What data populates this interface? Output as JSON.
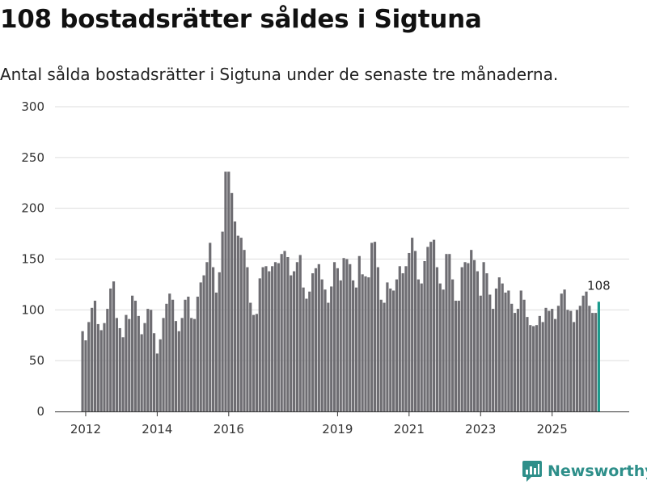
{
  "header": {
    "title": "108 bostadsrätter såldes i Sigtuna",
    "subtitle": "Antal sålda bostadsrätter i Sigtuna under de senaste tre månaderna."
  },
  "brand": {
    "name": "Newsworthy",
    "icon": "newsworthy-logo-icon",
    "color": "#2e8f8a"
  },
  "colors": {
    "bar": "#6e6d72",
    "highlight": "#1a9a8c",
    "grid": "#dddddd",
    "axis": "#333333"
  },
  "chart_data": {
    "type": "bar",
    "title": "108 bostadsrätter såldes i Sigtuna",
    "subtitle": "Antal sålda bostadsrätter i Sigtuna under de senaste tre månaderna.",
    "xlabel": "",
    "ylabel": "",
    "ylim": [
      0,
      300
    ],
    "yticks": [
      0,
      50,
      100,
      150,
      200,
      250,
      300
    ],
    "x_start": "2012-01",
    "frequency": "monthly",
    "x_tick_labels": [
      {
        "label": "2012",
        "index": 1
      },
      {
        "label": "2014",
        "index": 24
      },
      {
        "label": "2016",
        "index": 47
      },
      {
        "label": "2019",
        "index": 82
      },
      {
        "label": "2021",
        "index": 105
      },
      {
        "label": "2023",
        "index": 128
      },
      {
        "label": "2025",
        "index": 151
      }
    ],
    "grid": true,
    "values": [
      79,
      70,
      88,
      102,
      109,
      86,
      80,
      87,
      101,
      121,
      128,
      92,
      82,
      73,
      95,
      91,
      114,
      109,
      94,
      76,
      87,
      101,
      100,
      77,
      57,
      71,
      92,
      106,
      116,
      110,
      89,
      79,
      92,
      110,
      113,
      92,
      91,
      113,
      127,
      134,
      147,
      166,
      142,
      117,
      137,
      177,
      236,
      236,
      215,
      187,
      173,
      171,
      159,
      142,
      107,
      95,
      96,
      131,
      142,
      143,
      138,
      143,
      147,
      146,
      155,
      158,
      152,
      134,
      138,
      147,
      154,
      122,
      111,
      118,
      136,
      141,
      145,
      130,
      120,
      107,
      123,
      147,
      141,
      129,
      151,
      150,
      145,
      129,
      122,
      153,
      135,
      133,
      132,
      166,
      167,
      142,
      110,
      107,
      127,
      121,
      119,
      130,
      143,
      136,
      143,
      156,
      171,
      158,
      130,
      126,
      148,
      162,
      167,
      169,
      142,
      126,
      120,
      155,
      155,
      130,
      109,
      109,
      142,
      147,
      146,
      159,
      149,
      138,
      114,
      147,
      136,
      115,
      101,
      121,
      132,
      126,
      117,
      119,
      106,
      97,
      101,
      119,
      110,
      93,
      85,
      84,
      85,
      94,
      88,
      102,
      99,
      101,
      91,
      104,
      116,
      120,
      100,
      99,
      88,
      100,
      104,
      114,
      118,
      104,
      97,
      97,
      108
    ],
    "highlight_last": true,
    "annotations": [
      {
        "text": "108",
        "at": "last"
      }
    ]
  }
}
